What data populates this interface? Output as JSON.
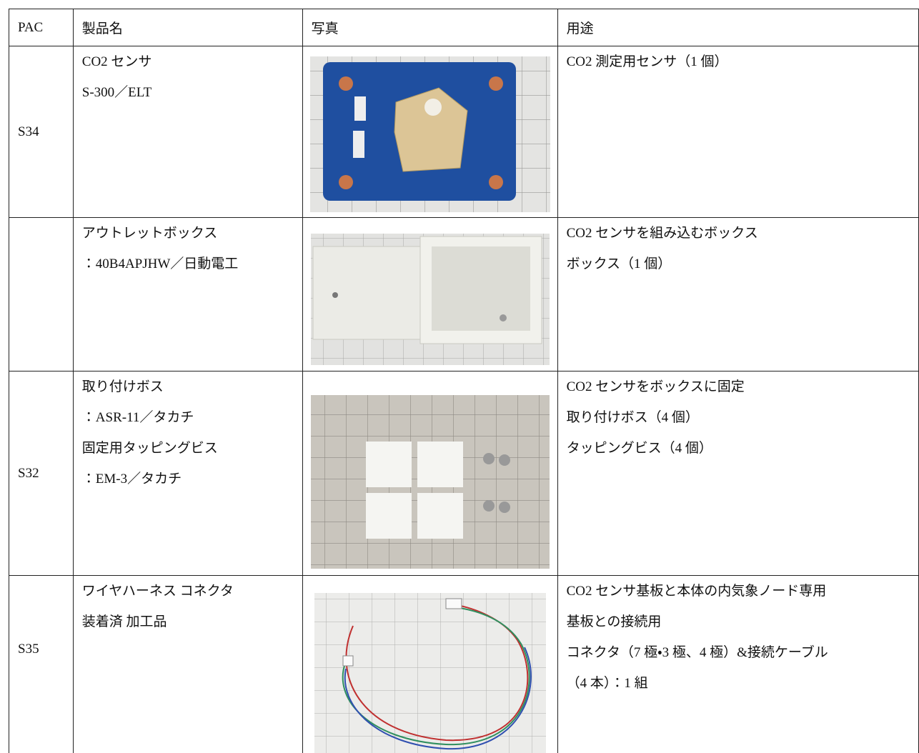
{
  "table": {
    "header": [
      "PAC",
      "製品名",
      "写真",
      "用途"
    ],
    "rows": [
      {
        "pac": "S34",
        "product": [
          "CO2 センサ",
          "S-300／ELT"
        ],
        "use": [
          "CO2 測定用センサ（1 個）"
        ]
      },
      {
        "product": [
          "アウトレットボックス",
          "：40B4APJHW／日動電工"
        ],
        "use": [
          "CO2 センサを組み込むボックス",
          "ボックス（1 個）"
        ]
      },
      {
        "pac": "S32",
        "product": [
          "取り付けボス",
          "：ASR-11／タカチ",
          "固定用タッピングビス",
          "：EM-3／タカチ"
        ],
        "use": [
          "CO2 センサをボックスに固定",
          "取り付けボス（4 個）",
          "タッピングビス（4 個）"
        ]
      },
      {
        "pac": "S35",
        "product": [
          "ワイヤハーネス コネクタ",
          "装着済 加工品"
        ],
        "use": [
          "CO2 センサ基板と本体の内気象ノード専用",
          "基板との接続用",
          "コネクタ（7 極・3 極、4 極）&接続ケーブル",
          "（4 本）：1 組"
        ]
      }
    ]
  }
}
